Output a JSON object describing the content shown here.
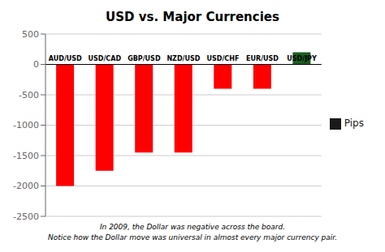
{
  "chart_data": {
    "type": "bar",
    "title": "USD vs. Major Currencies",
    "categories": [
      "AUD/USD",
      "USD/CAD",
      "GBP/USD",
      "NZD/USD",
      "USD/CHF",
      "EUR/USD",
      "USD/JPY"
    ],
    "series": [
      {
        "name": "Pips",
        "color": "#1a1a1a",
        "colors": [
          "#FF0000",
          "#FF0000",
          "#FF0000",
          "#FF0000",
          "#FF0000",
          "#FF0000",
          "#1B5E20"
        ],
        "values": [
          -2000,
          -1750,
          -1450,
          -1450,
          -400,
          -400,
          200
        ]
      }
    ],
    "ylim": [
      -2500,
      500
    ],
    "yticks": [
      -2500,
      -2000,
      -1500,
      -1000,
      -500,
      0,
      500
    ],
    "grid": true,
    "legend": "right",
    "annotations": [
      "In 2009, the Dollar was negative across the board.",
      "Notice how the Dollar move was universal in almost every major currency pair."
    ]
  }
}
